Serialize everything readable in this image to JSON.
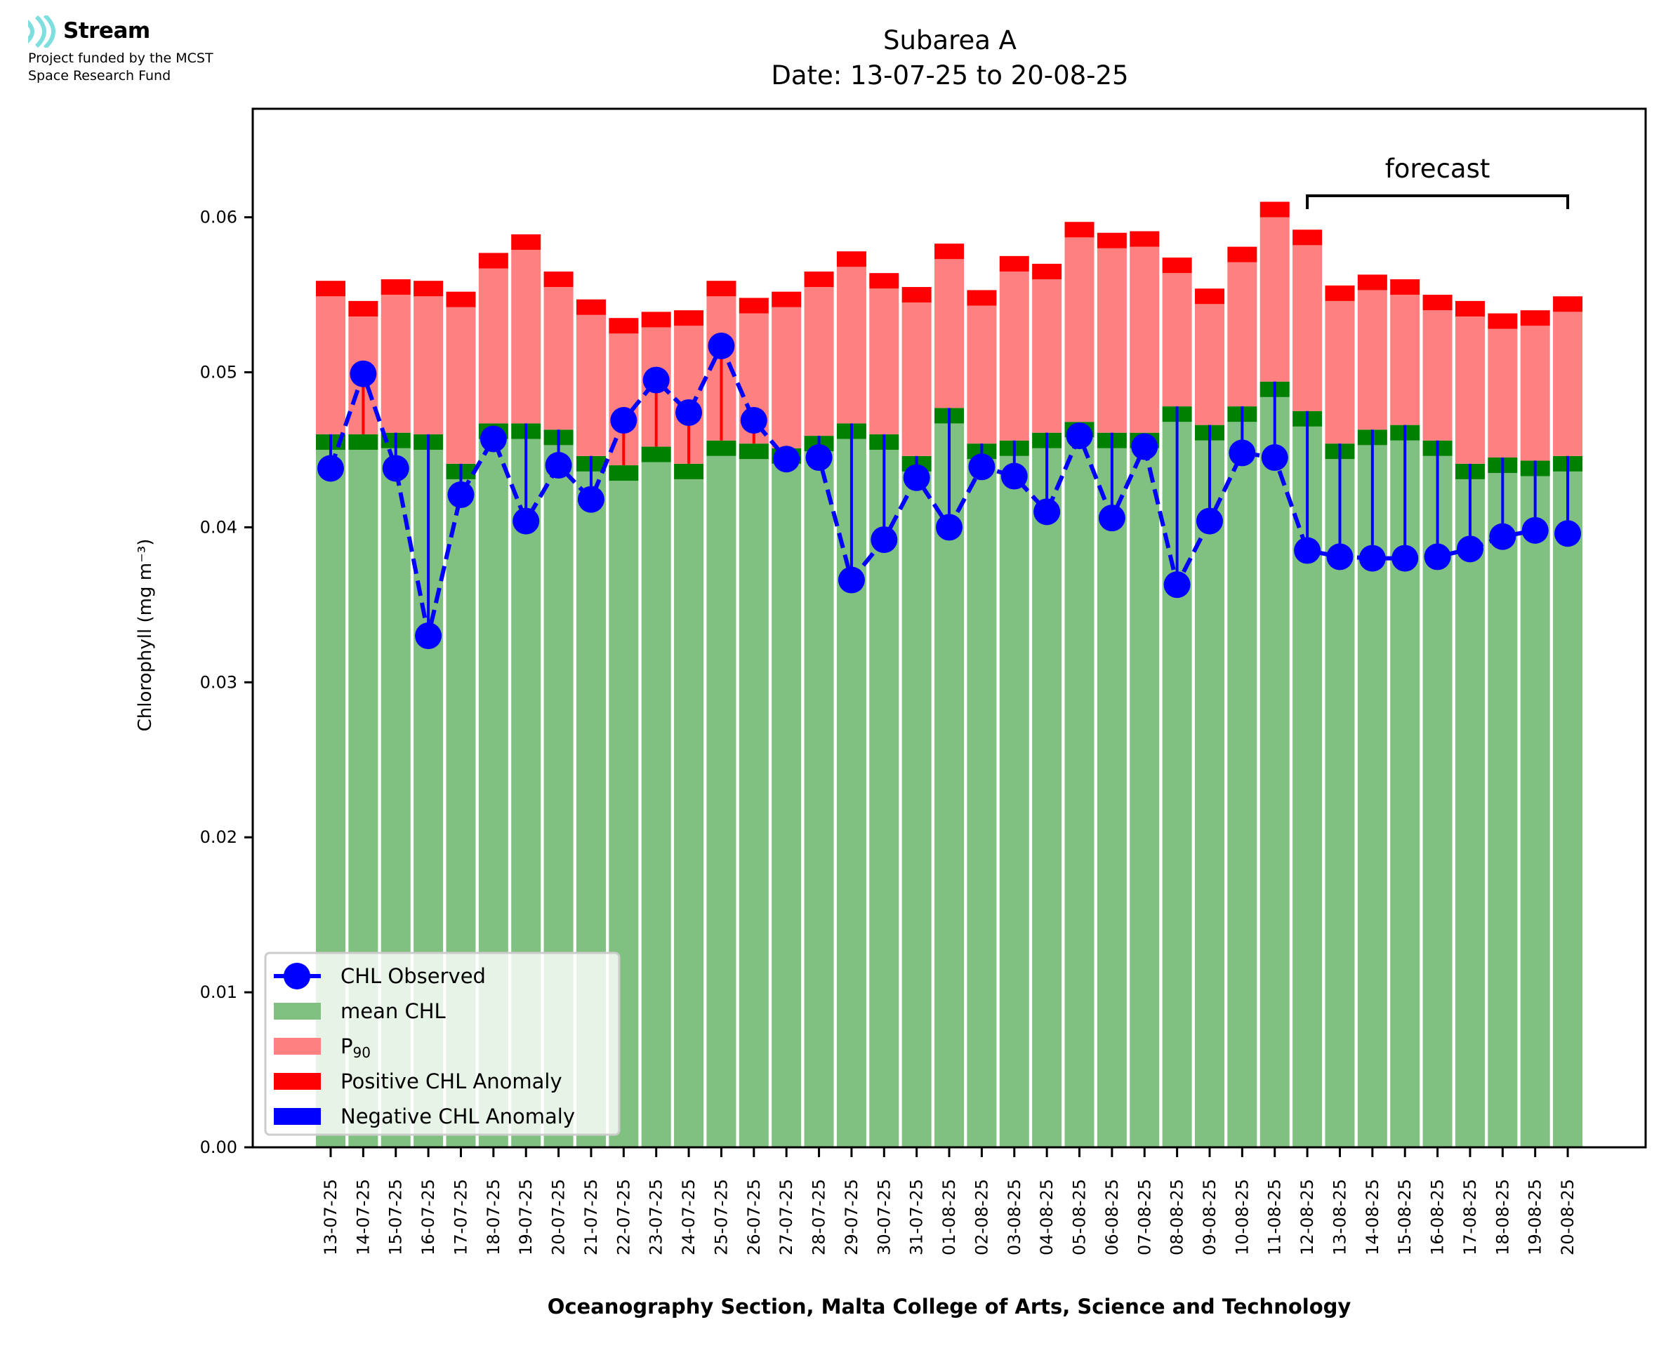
{
  "branding": {
    "name": "Stream",
    "line1": "Project funded by the MCST",
    "line2": "Space Research Fund",
    "logo_icon": "stream-waves-icon",
    "logo_color": "#7fdede"
  },
  "chart_data": {
    "type": "bar",
    "title": "Subarea A",
    "subtitle": "Date: 13-07-25 to 20-08-25",
    "xlabel": "Oceanography Section, Malta College of Arts, Science and Technology",
    "ylabel": "Chlorophyll (mg m⁻³)",
    "ylim": [
      0,
      0.067
    ],
    "yticks": [
      "0.00",
      "0.01",
      "0.02",
      "0.03",
      "0.04",
      "0.05",
      "0.06"
    ],
    "ytick_values": [
      0,
      0.01,
      0.02,
      0.03,
      0.04,
      0.05,
      0.06
    ],
    "grid": false,
    "legend_position": "lower-left",
    "annotation": {
      "text": "forecast",
      "from": "12-08-25",
      "to": "20-08-25"
    },
    "band_thickness": 0.001,
    "categories": [
      "13-07-25",
      "14-07-25",
      "15-07-25",
      "16-07-25",
      "17-07-25",
      "18-07-25",
      "19-07-25",
      "20-07-25",
      "21-07-25",
      "22-07-25",
      "23-07-25",
      "24-07-25",
      "25-07-25",
      "26-07-25",
      "27-07-25",
      "28-07-25",
      "29-07-25",
      "30-07-25",
      "31-07-25",
      "01-08-25",
      "02-08-25",
      "03-08-25",
      "04-08-25",
      "05-08-25",
      "06-08-25",
      "07-08-25",
      "08-08-25",
      "09-08-25",
      "10-08-25",
      "11-08-25",
      "12-08-25",
      "13-08-25",
      "14-08-25",
      "15-08-25",
      "16-08-25",
      "17-08-25",
      "18-08-25",
      "19-08-25",
      "20-08-25"
    ],
    "series": [
      {
        "name": "mean CHL",
        "color": "#80c080",
        "band_color": "#008000",
        "values": [
          0.045,
          0.045,
          0.0451,
          0.045,
          0.0431,
          0.0457,
          0.0457,
          0.0453,
          0.0436,
          0.043,
          0.0442,
          0.0431,
          0.0446,
          0.0444,
          0.0441,
          0.0449,
          0.0457,
          0.045,
          0.0436,
          0.0467,
          0.0444,
          0.0446,
          0.0451,
          0.0458,
          0.0451,
          0.0451,
          0.0468,
          0.0456,
          0.0468,
          0.0484,
          0.0465,
          0.0444,
          0.0453,
          0.0456,
          0.0446,
          0.0431,
          0.0435,
          0.0433,
          0.0436
        ]
      },
      {
        "name": "P₉₀",
        "color": "#ff8080",
        "band_color": "#ff0000",
        "values": [
          0.0549,
          0.0536,
          0.055,
          0.0549,
          0.0542,
          0.0567,
          0.0579,
          0.0555,
          0.0537,
          0.0525,
          0.0529,
          0.053,
          0.0549,
          0.0538,
          0.0542,
          0.0555,
          0.0568,
          0.0554,
          0.0545,
          0.0573,
          0.0543,
          0.0565,
          0.056,
          0.0587,
          0.058,
          0.0581,
          0.0564,
          0.0544,
          0.0571,
          0.06,
          0.0582,
          0.0546,
          0.0553,
          0.055,
          0.054,
          0.0536,
          0.0528,
          0.053,
          0.0539
        ]
      },
      {
        "name": "CHL Observed",
        "color": "#0000ff",
        "marker": "circle",
        "linestyle": "dashed",
        "values": [
          0.0438,
          0.0499,
          0.0438,
          0.033,
          0.0421,
          0.0457,
          0.0404,
          0.044,
          0.0418,
          0.0469,
          0.0495,
          0.0474,
          0.0517,
          0.0469,
          0.0444,
          0.0445,
          0.0366,
          0.0392,
          0.0432,
          0.04,
          0.0439,
          0.0433,
          0.041,
          0.0459,
          0.0406,
          0.0452,
          0.0363,
          0.0404,
          0.0448,
          0.0445,
          0.0385,
          0.0381,
          0.038,
          0.038,
          0.0381,
          0.0386,
          0.0394,
          0.0398,
          0.0396
        ]
      }
    ],
    "legend": [
      {
        "label": "CHL Observed",
        "kind": "line-marker",
        "color": "#0000ff"
      },
      {
        "label": "mean CHL",
        "kind": "patch",
        "color": "#80c080"
      },
      {
        "label": "P",
        "sub": "90",
        "kind": "patch",
        "color": "#ff8080"
      },
      {
        "label": "Positive CHL Anomaly",
        "kind": "patch",
        "color": "#ff0000"
      },
      {
        "label": "Negative CHL Anomaly",
        "kind": "patch",
        "color": "#0000ff"
      }
    ],
    "anomaly_colors": {
      "positive": "#ff0000",
      "negative": "#0000ff"
    }
  }
}
